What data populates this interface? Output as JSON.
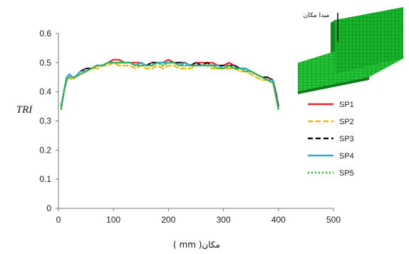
{
  "chart_data": {
    "type": "line",
    "xlabel": "مکان( mm )",
    "ylabel": "TRI",
    "xlim": [
      0,
      500
    ],
    "ylim": [
      0,
      0.6
    ],
    "xticks": [
      "0",
      "100",
      "200",
      "300",
      "400",
      "500"
    ],
    "yticks": [
      "0",
      "0.1",
      "0.2",
      "0.3",
      "0.4",
      "0.5",
      "0.6"
    ],
    "grid": false,
    "legend_position": "right",
    "inset_label": "مبدا مکان",
    "x": [
      5,
      10,
      15,
      20,
      25,
      30,
      40,
      50,
      60,
      70,
      80,
      90,
      100,
      110,
      120,
      130,
      140,
      150,
      160,
      170,
      180,
      190,
      200,
      210,
      220,
      230,
      240,
      250,
      260,
      270,
      280,
      290,
      300,
      310,
      320,
      330,
      340,
      350,
      360,
      370,
      380,
      390,
      395,
      400
    ],
    "series": [
      {
        "name": "SP1",
        "color": "#e8262b",
        "dash": "",
        "values": [
          0.35,
          0.4,
          0.45,
          0.46,
          0.45,
          0.45,
          0.47,
          0.48,
          0.48,
          0.49,
          0.49,
          0.5,
          0.51,
          0.51,
          0.5,
          0.5,
          0.5,
          0.5,
          0.49,
          0.5,
          0.5,
          0.5,
          0.51,
          0.5,
          0.5,
          0.5,
          0.49,
          0.5,
          0.5,
          0.5,
          0.5,
          0.49,
          0.49,
          0.5,
          0.49,
          0.48,
          0.48,
          0.47,
          0.46,
          0.45,
          0.45,
          0.44,
          0.4,
          0.35
        ]
      },
      {
        "name": "SP2",
        "color": "#f5b800",
        "dash": "7,4",
        "values": [
          0.34,
          0.4,
          0.44,
          0.45,
          0.44,
          0.45,
          0.46,
          0.47,
          0.48,
          0.48,
          0.49,
          0.49,
          0.5,
          0.49,
          0.49,
          0.49,
          0.48,
          0.49,
          0.48,
          0.48,
          0.49,
          0.48,
          0.49,
          0.49,
          0.48,
          0.48,
          0.48,
          0.49,
          0.49,
          0.49,
          0.48,
          0.48,
          0.48,
          0.48,
          0.48,
          0.47,
          0.47,
          0.46,
          0.45,
          0.44,
          0.44,
          0.43,
          0.39,
          0.34
        ]
      },
      {
        "name": "SP3",
        "color": "#111111",
        "dash": "7,4",
        "values": [
          0.35,
          0.4,
          0.45,
          0.46,
          0.45,
          0.45,
          0.47,
          0.48,
          0.48,
          0.49,
          0.49,
          0.5,
          0.5,
          0.5,
          0.5,
          0.5,
          0.49,
          0.5,
          0.49,
          0.5,
          0.5,
          0.5,
          0.5,
          0.5,
          0.5,
          0.5,
          0.49,
          0.5,
          0.49,
          0.5,
          0.49,
          0.49,
          0.49,
          0.49,
          0.49,
          0.48,
          0.48,
          0.47,
          0.46,
          0.45,
          0.45,
          0.44,
          0.4,
          0.35
        ]
      },
      {
        "name": "SP4",
        "color": "#2aa8e0",
        "dash": "",
        "values": [
          0.35,
          0.4,
          0.45,
          0.46,
          0.45,
          0.45,
          0.47,
          0.47,
          0.48,
          0.49,
          0.49,
          0.5,
          0.5,
          0.5,
          0.5,
          0.5,
          0.49,
          0.5,
          0.49,
          0.49,
          0.5,
          0.5,
          0.5,
          0.5,
          0.49,
          0.5,
          0.49,
          0.49,
          0.49,
          0.49,
          0.49,
          0.49,
          0.48,
          0.49,
          0.48,
          0.48,
          0.48,
          0.47,
          0.46,
          0.45,
          0.44,
          0.44,
          0.39,
          0.34
        ]
      },
      {
        "name": "SP5",
        "color": "#2eb82e",
        "dash": "2,3",
        "values": [
          0.34,
          0.4,
          0.44,
          0.45,
          0.45,
          0.45,
          0.46,
          0.47,
          0.48,
          0.49,
          0.49,
          0.5,
          0.5,
          0.5,
          0.5,
          0.5,
          0.49,
          0.49,
          0.49,
          0.49,
          0.5,
          0.49,
          0.5,
          0.5,
          0.49,
          0.49,
          0.49,
          0.49,
          0.49,
          0.49,
          0.49,
          0.48,
          0.48,
          0.49,
          0.48,
          0.48,
          0.47,
          0.47,
          0.46,
          0.45,
          0.44,
          0.43,
          0.39,
          0.34
        ]
      }
    ]
  }
}
